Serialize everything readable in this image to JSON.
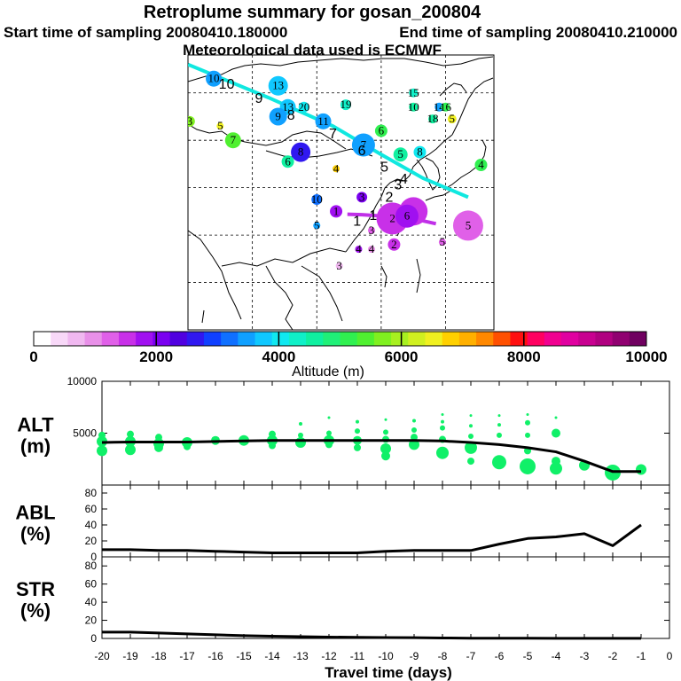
{
  "title": "Retroplume summary for gosan_200804",
  "start_label": "Start time of sampling 20080410.180000",
  "end_label": "End time of sampling 20080410.210000",
  "met_label": "Meteorological data used is ECMWF",
  "colorbar": {
    "label": "Altitude (m)",
    "ticks": [
      "0",
      "2000",
      "4000",
      "6000",
      "8000",
      "10000"
    ],
    "min": 0,
    "max": 10000,
    "colors": [
      "#ffffff",
      "#f8d8f8",
      "#f0b8f0",
      "#e890e8",
      "#e060e8",
      "#c830e8",
      "#a010f0",
      "#7a00f0",
      "#5000e0",
      "#3018f0",
      "#1040ff",
      "#1070ff",
      "#10a0ff",
      "#10c8ff",
      "#10e8f0",
      "#10f0c8",
      "#10f0a0",
      "#20f078",
      "#30f050",
      "#50f030",
      "#80f020",
      "#a8f020",
      "#d0f020",
      "#f0f020",
      "#ffd000",
      "#ffb000",
      "#ff8800",
      "#ff5000",
      "#ff1010",
      "#ff0060",
      "#f00090",
      "#e000a0",
      "#c80090",
      "#b00080",
      "#900070",
      "#700060"
    ]
  },
  "map": {
    "trajectory_labels": [
      {
        "text": "10",
        "lon": 72,
        "lat": 62
      },
      {
        "text": "9",
        "lon": 82,
        "lat": 59
      },
      {
        "text": "8",
        "lon": 92,
        "lat": 55.5
      },
      {
        "text": "7",
        "lon": 105,
        "lat": 51.5
      },
      {
        "text": "6",
        "lon": 114,
        "lat": 48
      },
      {
        "text": "5",
        "lon": 121,
        "lat": 44.5
      },
      {
        "text": "4",
        "lon": 127,
        "lat": 42
      },
      {
        "text": "3",
        "lon": 125.2,
        "lat": 40.8
      },
      {
        "text": "2",
        "lon": 122.5,
        "lat": 38.2
      },
      {
        "text": "1",
        "lon": 117.5,
        "lat": 34.3
      },
      {
        "text": "1",
        "lon": 112.5,
        "lat": 33.1
      }
    ],
    "markers": [
      {
        "text": "10",
        "lon": 68,
        "lat": 63,
        "alt": 3500,
        "size": 9
      },
      {
        "text": "13",
        "lon": 88,
        "lat": 61.5,
        "alt": 3700,
        "size": 11
      },
      {
        "text": "13",
        "lon": 91,
        "lat": 57,
        "alt": 3750,
        "size": 9
      },
      {
        "text": "20",
        "lon": 96,
        "lat": 57,
        "alt": 4000,
        "size": 6
      },
      {
        "text": "9",
        "lon": 88,
        "lat": 55,
        "alt": 3400,
        "size": 10
      },
      {
        "text": "11",
        "lon": 102,
        "lat": 54,
        "alt": 3400,
        "size": 9
      },
      {
        "text": "19",
        "lon": 109,
        "lat": 57.5,
        "alt": 4300,
        "size": 6
      },
      {
        "text": "15",
        "lon": 130,
        "lat": 60,
        "alt": 4200,
        "size": 5
      },
      {
        "text": "10",
        "lon": 130,
        "lat": 57,
        "alt": 4600,
        "size": 5
      },
      {
        "text": "14",
        "lon": 138,
        "lat": 57,
        "alt": 3500,
        "size": 5
      },
      {
        "text": "16",
        "lon": 140,
        "lat": 57,
        "alt": 5200,
        "size": 5
      },
      {
        "text": "18",
        "lon": 136,
        "lat": 54.5,
        "alt": 4500,
        "size": 5
      },
      {
        "text": "5",
        "lon": 142,
        "lat": 54.5,
        "alt": 6600,
        "size": 5
      },
      {
        "text": "6",
        "lon": 120,
        "lat": 52,
        "alt": 5200,
        "size": 7
      },
      {
        "text": "7",
        "lon": 114.5,
        "lat": 49,
        "alt": 3500,
        "size": 13
      },
      {
        "text": "5",
        "lon": 126,
        "lat": 47,
        "alt": 4500,
        "size": 8
      },
      {
        "text": "8",
        "lon": 132,
        "lat": 47.5,
        "alt": 4000,
        "size": 7
      },
      {
        "text": "8",
        "lon": 95,
        "lat": 47.5,
        "alt": 2700,
        "size": 11
      },
      {
        "text": "6",
        "lon": 91,
        "lat": 45.5,
        "alt": 4600,
        "size": 7
      },
      {
        "text": "7",
        "lon": 74,
        "lat": 50,
        "alt": 5300,
        "size": 9
      },
      {
        "text": "3",
        "lon": 60.5,
        "lat": 54,
        "alt": 5800,
        "size": 6
      },
      {
        "text": "5",
        "lon": 70,
        "lat": 53,
        "alt": 6600,
        "size": 4
      },
      {
        "text": "4",
        "lon": 151,
        "lat": 44.8,
        "alt": 5200,
        "size": 7
      },
      {
        "text": "4",
        "lon": 106,
        "lat": 44,
        "alt": 6700,
        "size": 4
      },
      {
        "text": "10",
        "lon": 100,
        "lat": 37.5,
        "alt": 3200,
        "size": 6
      },
      {
        "text": "3",
        "lon": 114,
        "lat": 38,
        "alt": 2200,
        "size": 6
      },
      {
        "text": "5",
        "lon": 100,
        "lat": 32,
        "alt": 3600,
        "size": 4
      },
      {
        "text": "1",
        "lon": 106,
        "lat": 35,
        "alt": 1700,
        "size": 7
      },
      {
        "text": "3",
        "lon": 117,
        "lat": 31,
        "alt": 1300,
        "size": 4
      },
      {
        "text": "4",
        "lon": 113,
        "lat": 27,
        "alt": 1800,
        "size": 4
      },
      {
        "text": "2",
        "lon": 123.5,
        "lat": 33.5,
        "alt": 1600,
        "size": 18
      },
      {
        "text": "3",
        "lon": 130,
        "lat": 35,
        "alt": 1500,
        "size": 16
      },
      {
        "text": "6",
        "lon": 128,
        "lat": 34,
        "alt": 1800,
        "size": 13
      },
      {
        "text": "2",
        "lon": 124,
        "lat": 28,
        "alt": 1500,
        "size": 7
      },
      {
        "text": "5",
        "lon": 147,
        "lat": 32,
        "alt": 1250,
        "size": 17
      },
      {
        "text": "4",
        "lon": 117,
        "lat": 27,
        "alt": 900,
        "size": 4
      },
      {
        "text": "5",
        "lon": 139,
        "lat": 28.5,
        "alt": 1200,
        "size": 4
      },
      {
        "text": "3",
        "lon": 107,
        "lat": 23.5,
        "alt": 800,
        "size": 4
      }
    ],
    "cyan_track": [
      [
        60,
        66
      ],
      [
        85,
        59
      ],
      [
        105,
        53
      ],
      [
        120,
        47
      ],
      [
        133,
        42
      ],
      [
        147,
        38
      ]
    ],
    "magenta_track": [
      [
        109.5,
        34.4
      ],
      [
        114,
        34.3
      ],
      [
        118.5,
        34.1
      ],
      [
        123,
        33.8
      ],
      [
        126.5,
        33.4
      ],
      [
        131,
        33.3
      ],
      [
        137,
        32.4
      ]
    ]
  },
  "chart_data": {
    "type": "line",
    "x": [
      -20,
      -19,
      -18,
      -17,
      -16,
      -15,
      -14,
      -13,
      -12,
      -11,
      -10,
      -9,
      -8,
      -7,
      -6,
      -5,
      -4,
      -3,
      -2,
      -1
    ],
    "xlabel": "Travel time (days)",
    "xlim": [
      -20,
      0
    ],
    "xticks": [
      "-20",
      "-19",
      "-18",
      "-17",
      "-16",
      "-15",
      "-14",
      "-13",
      "-12",
      "-11",
      "-10",
      "-9",
      "-8",
      "-7",
      "-6",
      "-5",
      "-4",
      "-3",
      "-2",
      "-1",
      "0"
    ],
    "panels": [
      {
        "name": "ALT",
        "ylabel_line1": "ALT",
        "ylabel_line2": "(m)",
        "ylim": [
          0,
          10000
        ],
        "yticks": [
          "5000",
          "10000"
        ],
        "values": [
          4100,
          4150,
          4150,
          4150,
          4200,
          4250,
          4300,
          4300,
          4300,
          4300,
          4300,
          4300,
          4250,
          4100,
          3900,
          3600,
          3200,
          2300,
          1300,
          1300
        ],
        "scatter": [
          {
            "x": -20,
            "y": 4200,
            "s": 6
          },
          {
            "x": -20,
            "y": 3300,
            "s": 6
          },
          {
            "x": -20,
            "y": 4800,
            "s": 4
          },
          {
            "x": -19,
            "y": 4200,
            "s": 6
          },
          {
            "x": -19,
            "y": 3400,
            "s": 6
          },
          {
            "x": -19,
            "y": 4900,
            "s": 4
          },
          {
            "x": -18,
            "y": 4000,
            "s": 6
          },
          {
            "x": -18,
            "y": 3600,
            "s": 5
          },
          {
            "x": -18,
            "y": 4600,
            "s": 4
          },
          {
            "x": -17,
            "y": 4100,
            "s": 6
          },
          {
            "x": -17,
            "y": 3700,
            "s": 4
          },
          {
            "x": -16,
            "y": 4300,
            "s": 5
          },
          {
            "x": -15,
            "y": 4300,
            "s": 6
          },
          {
            "x": -14,
            "y": 4300,
            "s": 6
          },
          {
            "x": -14,
            "y": 3800,
            "s": 4
          },
          {
            "x": -14,
            "y": 4900,
            "s": 4
          },
          {
            "x": -13,
            "y": 4100,
            "s": 6
          },
          {
            "x": -13,
            "y": 4800,
            "s": 3
          },
          {
            "x": -13,
            "y": 5900,
            "s": 2
          },
          {
            "x": -12,
            "y": 4300,
            "s": 6
          },
          {
            "x": -12,
            "y": 3900,
            "s": 4
          },
          {
            "x": -12,
            "y": 5000,
            "s": 3
          },
          {
            "x": -12,
            "y": 6500,
            "s": 1.5
          },
          {
            "x": -11,
            "y": 4300,
            "s": 5
          },
          {
            "x": -11,
            "y": 3600,
            "s": 4
          },
          {
            "x": -11,
            "y": 5200,
            "s": 3
          },
          {
            "x": -11,
            "y": 6100,
            "s": 2
          },
          {
            "x": -10,
            "y": 3500,
            "s": 6
          },
          {
            "x": -10,
            "y": 2800,
            "s": 5
          },
          {
            "x": -10,
            "y": 4400,
            "s": 4
          },
          {
            "x": -10,
            "y": 5100,
            "s": 3
          },
          {
            "x": -10,
            "y": 6300,
            "s": 1.5
          },
          {
            "x": -9,
            "y": 3900,
            "s": 6
          },
          {
            "x": -9,
            "y": 4600,
            "s": 4
          },
          {
            "x": -9,
            "y": 5300,
            "s": 3
          },
          {
            "x": -9,
            "y": 6200,
            "s": 2
          },
          {
            "x": -8,
            "y": 3100,
            "s": 7
          },
          {
            "x": -8,
            "y": 4400,
            "s": 4
          },
          {
            "x": -8,
            "y": 5500,
            "s": 3
          },
          {
            "x": -8,
            "y": 6100,
            "s": 2
          },
          {
            "x": -8,
            "y": 6800,
            "s": 1.5
          },
          {
            "x": -7,
            "y": 3600,
            "s": 7
          },
          {
            "x": -7,
            "y": 2300,
            "s": 4
          },
          {
            "x": -7,
            "y": 4700,
            "s": 3
          },
          {
            "x": -7,
            "y": 5700,
            "s": 2
          },
          {
            "x": -7,
            "y": 6700,
            "s": 1.5
          },
          {
            "x": -6,
            "y": 2200,
            "s": 8
          },
          {
            "x": -6,
            "y": 4800,
            "s": 3
          },
          {
            "x": -6,
            "y": 5800,
            "s": 2
          },
          {
            "x": -6,
            "y": 6700,
            "s": 1.5
          },
          {
            "x": -5,
            "y": 1800,
            "s": 9
          },
          {
            "x": -5,
            "y": 3300,
            "s": 4
          },
          {
            "x": -5,
            "y": 4800,
            "s": 3
          },
          {
            "x": -5,
            "y": 6000,
            "s": 3
          },
          {
            "x": -5,
            "y": 6800,
            "s": 1.5
          },
          {
            "x": -4,
            "y": 1600,
            "s": 7
          },
          {
            "x": -4,
            "y": 2300,
            "s": 5
          },
          {
            "x": -4,
            "y": 5000,
            "s": 5
          },
          {
            "x": -4,
            "y": 6500,
            "s": 1.5
          },
          {
            "x": -3,
            "y": 1900,
            "s": 6
          },
          {
            "x": -2,
            "y": 1200,
            "s": 9
          },
          {
            "x": -1,
            "y": 1500,
            "s": 6
          }
        ]
      },
      {
        "name": "ABL",
        "ylabel_line1": "ABL",
        "ylabel_line2": "(%)",
        "ylim": [
          0,
          90
        ],
        "yticks": [
          "0",
          "20",
          "40",
          "60",
          "80"
        ],
        "values": [
          9,
          9,
          8,
          8,
          7,
          6,
          5,
          5,
          5,
          5,
          7,
          8,
          8,
          8,
          16,
          23,
          25,
          29,
          14,
          40
        ]
      },
      {
        "name": "STR",
        "ylabel_line1": "STR",
        "ylabel_line2": "(%)",
        "ylim": [
          0,
          90
        ],
        "yticks": [
          "0",
          "20",
          "40",
          "60",
          "80"
        ],
        "values": [
          7,
          7,
          6,
          5,
          4,
          3,
          2.5,
          2,
          1.5,
          1.2,
          1,
          0.8,
          0.5,
          0.3,
          0.2,
          0.2,
          0.1,
          0.1,
          0.1,
          0.1
        ]
      }
    ]
  }
}
